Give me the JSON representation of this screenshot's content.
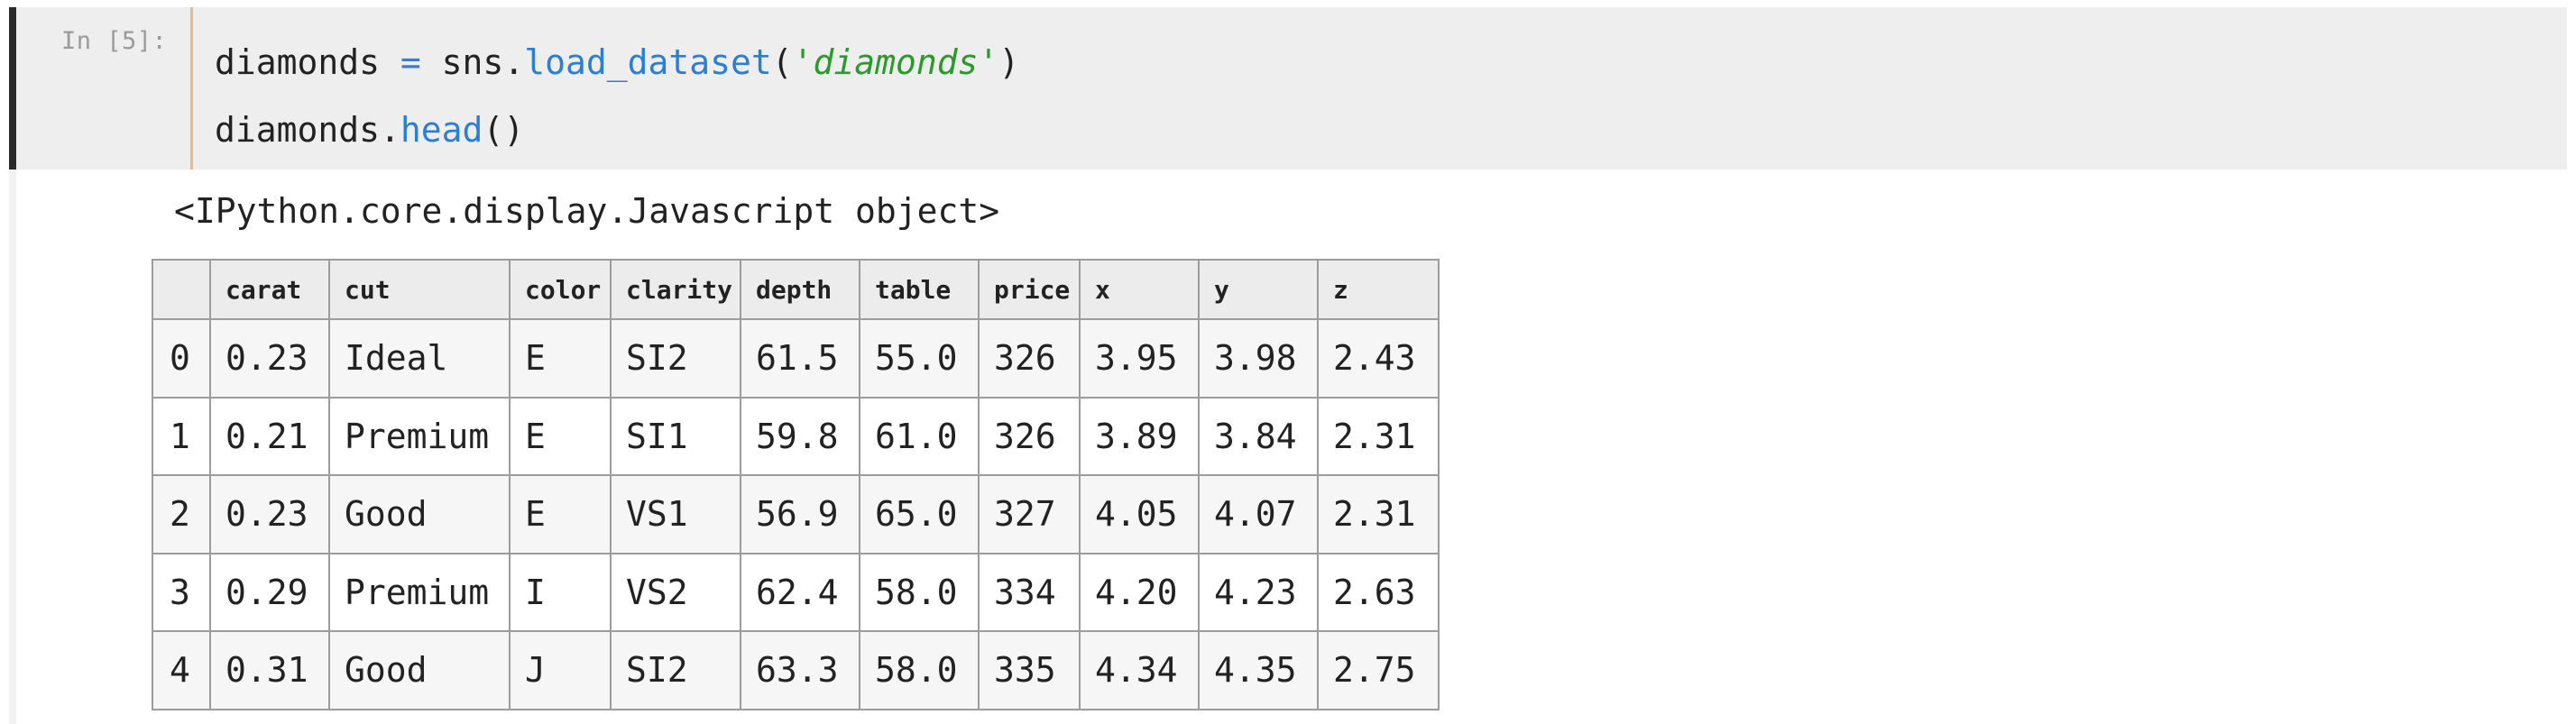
{
  "cell": {
    "prompt": "In [5]:",
    "line1": {
      "var": "diamonds",
      "op": " = ",
      "module": "sns",
      "dot": ".",
      "func": "load_dataset",
      "open": "(",
      "arg": "'diamonds'",
      "close": ")"
    },
    "line2": {
      "var": "diamonds",
      "dot": ".",
      "func": "head",
      "parens": "()"
    }
  },
  "output": {
    "text": "<IPython.core.display.Javascript object>"
  },
  "table": {
    "index_header": "",
    "columns": [
      "carat",
      "cut",
      "color",
      "clarity",
      "depth",
      "table",
      "price",
      "x",
      "y",
      "z"
    ],
    "rows": [
      {
        "index": "0",
        "cells": [
          "0.23",
          "Ideal",
          "E",
          "SI2",
          "61.5",
          "55.0",
          "326",
          "3.95",
          "3.98",
          "2.43"
        ]
      },
      {
        "index": "1",
        "cells": [
          "0.21",
          "Premium",
          "E",
          "SI1",
          "59.8",
          "61.0",
          "326",
          "3.89",
          "3.84",
          "2.31"
        ]
      },
      {
        "index": "2",
        "cells": [
          "0.23",
          "Good",
          "E",
          "VS1",
          "56.9",
          "65.0",
          "327",
          "4.05",
          "4.07",
          "2.31"
        ]
      },
      {
        "index": "3",
        "cells": [
          "0.29",
          "Premium",
          "I",
          "VS2",
          "62.4",
          "58.0",
          "334",
          "4.20",
          "4.23",
          "2.63"
        ]
      },
      {
        "index": "4",
        "cells": [
          "0.31",
          "Good",
          "J",
          "SI2",
          "63.3",
          "58.0",
          "335",
          "4.34",
          "4.35",
          "2.75"
        ]
      }
    ]
  },
  "colors": {
    "cell_background": "#eeeeee",
    "cell_border_active": "#2b2b2b",
    "keyword_blue": "#2a7fd4",
    "string_green": "#2a9a2a"
  }
}
